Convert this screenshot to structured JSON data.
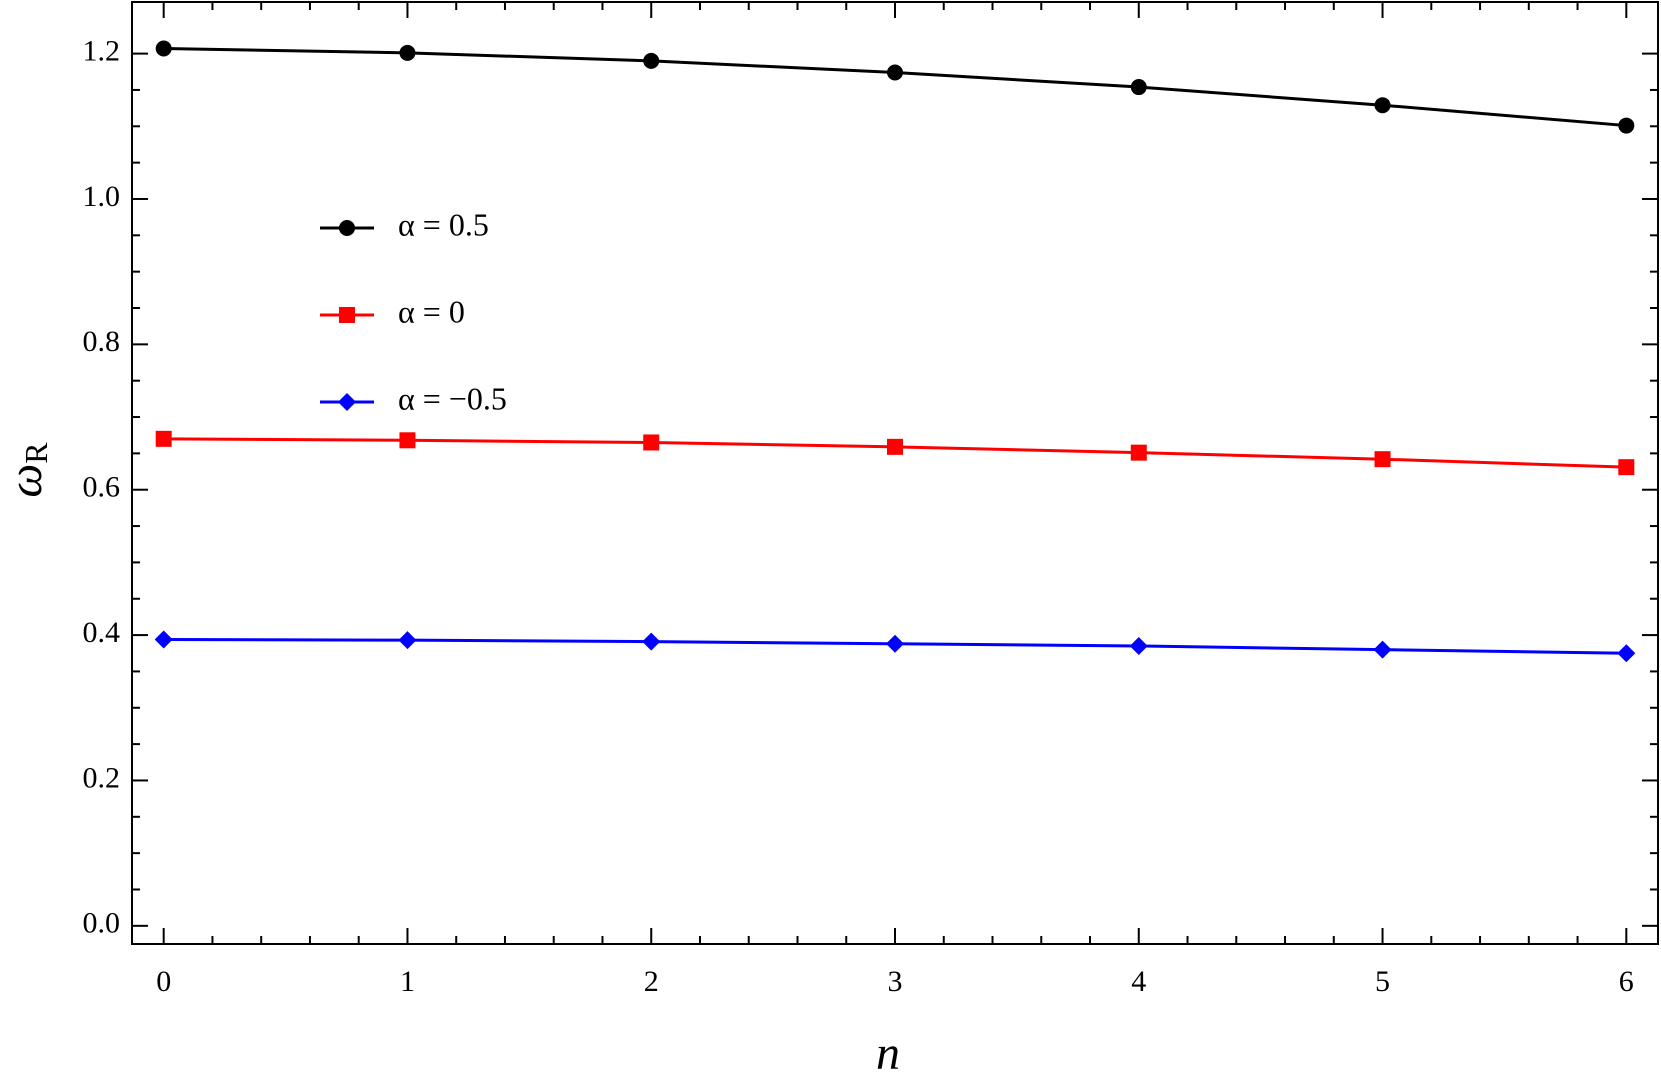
{
  "chart_data": {
    "type": "line",
    "xlabel": "n",
    "ylabel": {
      "symbol": "ω",
      "subscript": "R"
    },
    "x": [
      0,
      1,
      2,
      3,
      4,
      5,
      6
    ],
    "series": [
      {
        "name": "α = 0.5",
        "color": "#000000",
        "marker": "circle",
        "values": [
          1.207,
          1.201,
          1.19,
          1.174,
          1.154,
          1.129,
          1.101
        ]
      },
      {
        "name": "α = 0",
        "color": "#ff0000",
        "marker": "square",
        "values": [
          0.67,
          0.668,
          0.665,
          0.659,
          0.651,
          0.642,
          0.631
        ]
      },
      {
        "name": "α = −0.5",
        "color": "#0000ff",
        "marker": "diamond",
        "values": [
          0.394,
          0.393,
          0.391,
          0.388,
          0.385,
          0.38,
          0.375
        ]
      }
    ],
    "xlim": [
      -0.13,
      6.13
    ],
    "ylim": [
      -0.025,
      1.271
    ],
    "xticks": [
      0,
      1,
      2,
      3,
      4,
      5,
      6
    ],
    "yticks": [
      {
        "value": 0,
        "label": "0.0"
      },
      0.2,
      0.4,
      0.6,
      0.8,
      {
        "value": 1,
        "label": "1.0"
      },
      1.2
    ],
    "grid": false,
    "legend": "upper left"
  }
}
